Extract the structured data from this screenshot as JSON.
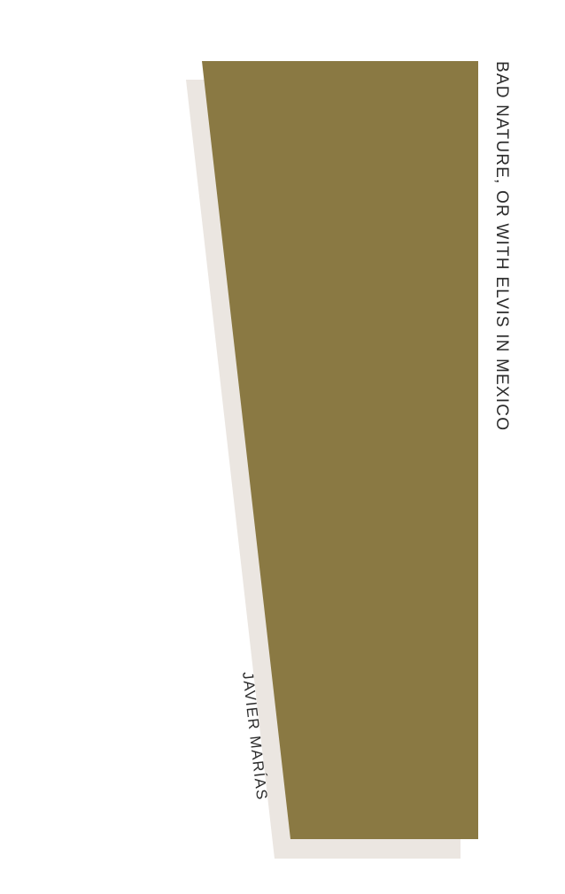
{
  "cover": {
    "title": "BAD NATURE, OR WITH ELVIS IN MEXICO",
    "author": "JAVIER MARÍAS",
    "colors": {
      "background": "#ffffff",
      "main_shape": "#8a7943",
      "shadow_shape": "#ebe6e1",
      "text": "#2b2b2b"
    }
  }
}
